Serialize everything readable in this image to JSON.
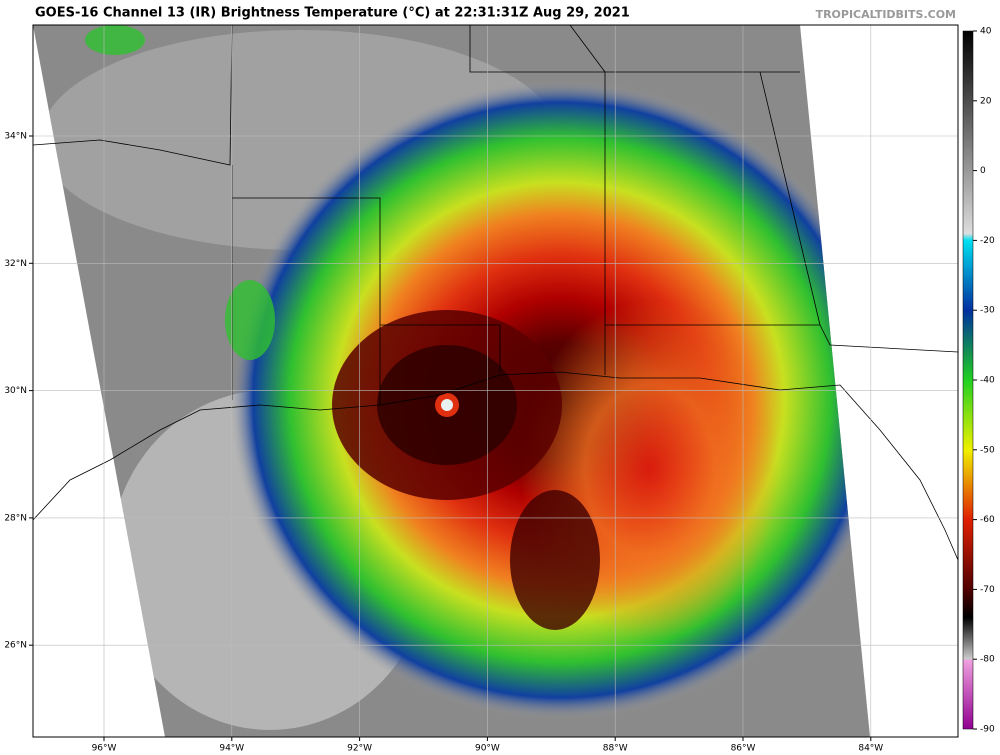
{
  "title": "GOES-16 Channel 13 (IR) Brightness Temperature (°C) at 22:31:31Z Aug 29, 2021",
  "watermark": "TROPICALTIDBITS.COM",
  "lat_labels": [
    "34°N",
    "32°N",
    "30°N",
    "28°N",
    "26°N"
  ],
  "lon_labels": [
    "96°W",
    "94°W",
    "92°W",
    "90°W",
    "88°W",
    "86°W",
    "84°W"
  ],
  "colorbar_ticks": [
    40,
    20,
    0,
    -20,
    -30,
    -40,
    -50,
    -60,
    -70,
    -80,
    -90
  ]
}
